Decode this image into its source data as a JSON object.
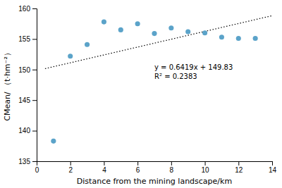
{
  "chart_data": {
    "type": "scatter",
    "xlabel": "Distance from the mining landscape/km",
    "ylabel": "CMean/ （t·hm⁻²）",
    "series": [
      {
        "type": "scatter",
        "marker": "circle",
        "color": "#5ba3c9",
        "x": [
          1,
          2,
          3,
          4,
          5,
          6,
          7,
          8,
          9,
          10,
          11,
          12,
          13
        ],
        "values": [
          138.3,
          152.2,
          154.1,
          157.8,
          156.5,
          157.5,
          155.9,
          156.8,
          156.2,
          156.0,
          155.3,
          155.1,
          155.1
        ]
      },
      {
        "type": "line",
        "line_style": "dotted",
        "color": "#000000",
        "x": [
          0.5,
          14
        ],
        "values": [
          150.15095,
          158.8166
        ]
      }
    ],
    "annotations": [
      "y = 0.6419x + 149.83",
      "R² = 0.2383"
    ],
    "xlim": [
      0,
      14
    ],
    "ylim": [
      135,
      160
    ],
    "xticks": [
      0,
      2,
      4,
      6,
      8,
      10,
      12,
      14
    ],
    "yticks": [
      135,
      140,
      145,
      150,
      155,
      160
    ],
    "grid": false
  }
}
